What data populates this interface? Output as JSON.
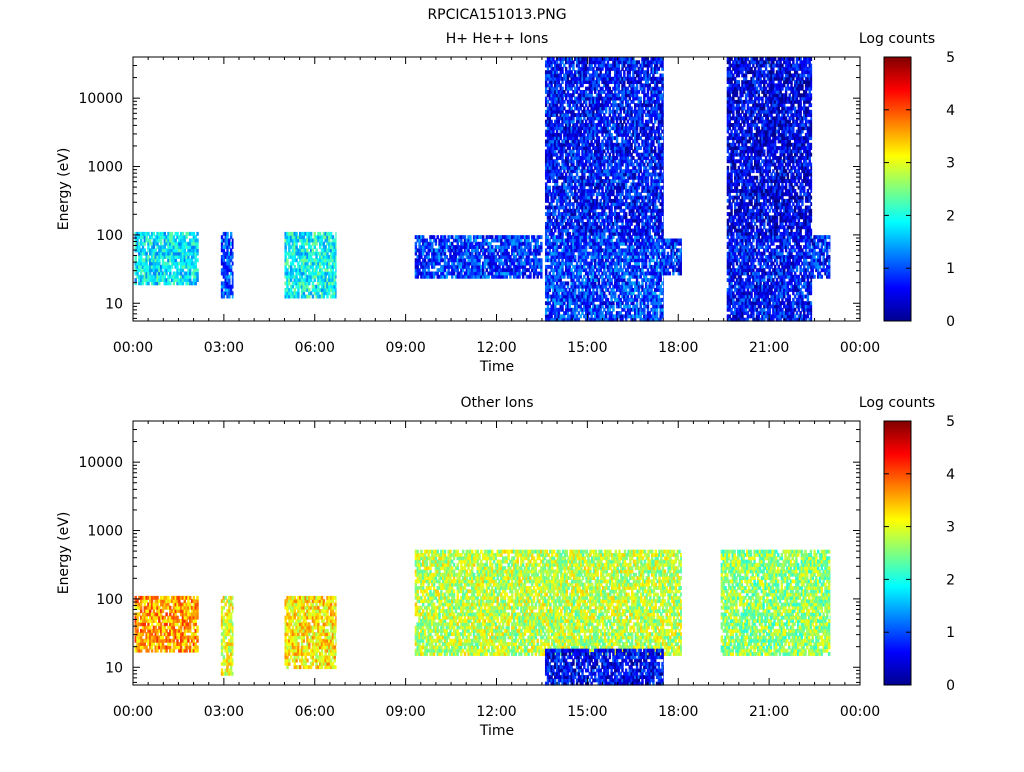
{
  "figure": {
    "title": "RPCICA151013.PNG"
  },
  "chart_data": [
    {
      "type": "heatmap",
      "title": "H+ He++ Ions",
      "xlabel": "Time",
      "ylabel": "Energy (eV)",
      "x_ticks": [
        "00:00",
        "03:00",
        "06:00",
        "09:00",
        "12:00",
        "15:00",
        "18:00",
        "21:00",
        "00:00"
      ],
      "y_ticks": [
        "10",
        "100",
        "1000",
        "10000"
      ],
      "y_scale": "log",
      "y_range": [
        5.5,
        40000
      ],
      "x_range_hours": [
        0,
        24
      ],
      "colorbar": {
        "label": "Log counts",
        "ticks": [
          "0",
          "1",
          "2",
          "3",
          "4",
          "5"
        ],
        "range": [
          0,
          5
        ]
      },
      "regions": [
        {
          "t0": 0.05,
          "t1": 2.15,
          "emin": 20,
          "emax": 100,
          "level": 1.8
        },
        {
          "t0": 2.9,
          "t1": 3.3,
          "emin": 12,
          "emax": 100,
          "level": 1.0
        },
        {
          "t0": 5.0,
          "t1": 6.7,
          "emin": 12,
          "emax": 100,
          "level": 1.9
        },
        {
          "t0": 9.3,
          "t1": 13.5,
          "emin": 25,
          "emax": 90,
          "level": 0.9
        },
        {
          "t0": 13.6,
          "t1": 17.5,
          "emin": 6,
          "emax": 40000,
          "level": 0.9
        },
        {
          "t0": 17.5,
          "t1": 18.1,
          "emin": 28,
          "emax": 80,
          "level": 0.8
        },
        {
          "t0": 19.6,
          "t1": 22.4,
          "emin": 6,
          "emax": 40000,
          "level": 0.7
        },
        {
          "t0": 22.4,
          "t1": 23.0,
          "emin": 25,
          "emax": 90,
          "level": 0.8
        }
      ]
    },
    {
      "type": "heatmap",
      "title": "Other Ions",
      "xlabel": "Time",
      "ylabel": "Energy (eV)",
      "x_ticks": [
        "00:00",
        "03:00",
        "06:00",
        "09:00",
        "12:00",
        "15:00",
        "18:00",
        "21:00",
        "00:00"
      ],
      "y_ticks": [
        "10",
        "100",
        "1000",
        "10000"
      ],
      "y_scale": "log",
      "y_range": [
        5.5,
        40000
      ],
      "x_range_hours": [
        0,
        24
      ],
      "colorbar": {
        "label": "Log counts",
        "ticks": [
          "0",
          "1",
          "2",
          "3",
          "4",
          "5"
        ],
        "range": [
          0,
          5
        ]
      },
      "regions": [
        {
          "t0": 0.05,
          "t1": 2.15,
          "emin": 18,
          "emax": 100,
          "level": 3.6
        },
        {
          "t0": 2.9,
          "t1": 3.3,
          "emin": 8,
          "emax": 100,
          "level": 3.0
        },
        {
          "t0": 5.0,
          "t1": 6.7,
          "emin": 10,
          "emax": 100,
          "level": 3.2
        },
        {
          "t0": 9.3,
          "t1": 18.1,
          "emin": 15,
          "emax": 500,
          "level": 2.8
        },
        {
          "t0": 13.6,
          "t1": 17.5,
          "emin": 6,
          "emax": 18,
          "level": 0.6
        },
        {
          "t0": 19.4,
          "t1": 23.0,
          "emin": 15,
          "emax": 500,
          "level": 2.6
        }
      ]
    }
  ]
}
